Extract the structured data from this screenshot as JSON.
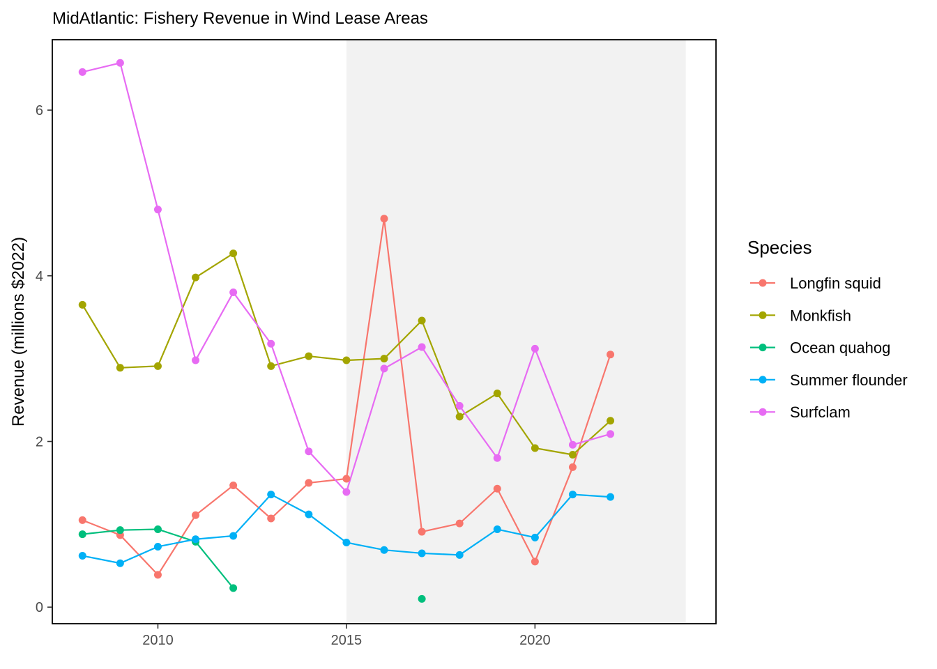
{
  "chart_data": {
    "type": "line",
    "title": "MidAtlantic: Fishery Revenue in Wind Lease Areas",
    "xlabel": "",
    "ylabel": "Revenue (millions $2022)",
    "xlim": [
      2007.2,
      2024.8
    ],
    "ylim": [
      -0.2,
      6.85
    ],
    "x_ticks": [
      2010,
      2015,
      2020
    ],
    "y_ticks": [
      0,
      2,
      4,
      6
    ],
    "grid": false,
    "shaded_region": {
      "x_start": 2015,
      "x_end": 2024,
      "color": "#f2f2f2"
    },
    "legend": {
      "title": "Species",
      "placement": "right"
    },
    "series": [
      {
        "name": "Longfin squid",
        "color": "#F8766D",
        "x": [
          2008,
          2009,
          2010,
          2011,
          2012,
          2013,
          2014,
          2015,
          2016,
          2017,
          2018,
          2019,
          2020,
          2021,
          2022
        ],
        "values": [
          1.05,
          0.87,
          0.39,
          1.11,
          1.47,
          1.07,
          1.5,
          1.55,
          4.69,
          0.91,
          1.01,
          1.43,
          0.55,
          1.69,
          3.05
        ]
      },
      {
        "name": "Monkfish",
        "color": "#A3A500",
        "x": [
          2008,
          2009,
          2010,
          2011,
          2012,
          2013,
          2014,
          2015,
          2016,
          2017,
          2018,
          2019,
          2020,
          2021,
          2022
        ],
        "values": [
          3.65,
          2.89,
          2.91,
          3.98,
          4.27,
          2.91,
          3.03,
          2.98,
          3.0,
          3.46,
          2.3,
          2.58,
          1.92,
          1.84,
          2.25
        ]
      },
      {
        "name": "Ocean quahog",
        "color": "#00BF7D",
        "x": [
          2008,
          2009,
          2010,
          2011,
          2012,
          null,
          2017
        ],
        "values": [
          0.88,
          0.93,
          0.94,
          0.79,
          0.23,
          null,
          0.1
        ]
      },
      {
        "name": "Summer flounder",
        "color": "#00B0F6",
        "x": [
          2008,
          2009,
          2010,
          2011,
          2012,
          2013,
          2014,
          2015,
          2016,
          2017,
          2018,
          2019,
          2020,
          2021,
          2022
        ],
        "values": [
          0.62,
          0.53,
          0.73,
          0.82,
          0.86,
          1.36,
          1.12,
          0.78,
          0.69,
          0.65,
          0.63,
          0.94,
          0.84,
          1.36,
          1.33
        ]
      },
      {
        "name": "Surfclam",
        "color": "#E76BF3",
        "x": [
          2008,
          2009,
          2010,
          2011,
          2012,
          2013,
          2014,
          2015,
          2016,
          2017,
          2018,
          2019,
          2020,
          2021,
          2022
        ],
        "values": [
          6.46,
          6.57,
          4.8,
          2.98,
          3.8,
          3.18,
          1.88,
          1.39,
          2.88,
          3.14,
          2.43,
          1.8,
          3.12,
          1.96,
          2.09
        ]
      }
    ]
  }
}
